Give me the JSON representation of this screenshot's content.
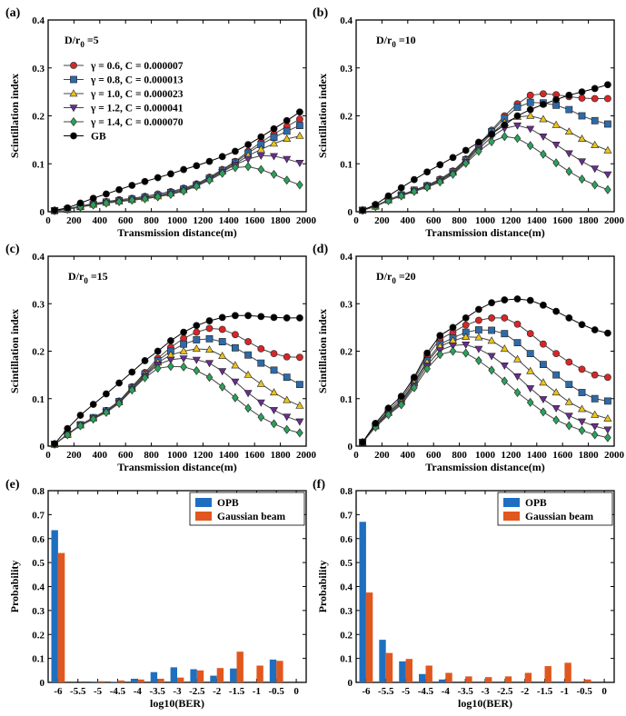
{
  "colors": {
    "gamma_0_6": "#d62728",
    "gamma_0_8": "#2e6aa8",
    "gamma_1_0": "#eac21a",
    "gamma_1_2": "#6a2c91",
    "gamma_1_4": "#2ca05a",
    "gb": "#000000",
    "opb": "#1f6fc0",
    "gaussian": "#e0581e"
  },
  "legend": {
    "scint": [
      {
        "key": "g06",
        "label": "γ = 0.6, C = 0.000007",
        "marker": "circle",
        "color_key": "gamma_0_6"
      },
      {
        "key": "g08",
        "label": "γ = 0.8, C = 0.000013",
        "marker": "square",
        "color_key": "gamma_0_8"
      },
      {
        "key": "g10",
        "label": "γ = 1.0, C = 0.000023",
        "marker": "triangle-up",
        "color_key": "gamma_1_0"
      },
      {
        "key": "g12",
        "label": "γ = 1.2, C = 0.000041",
        "marker": "triangle-down",
        "color_key": "gamma_1_2"
      },
      {
        "key": "g14",
        "label": "γ = 1.4, C = 0.000070",
        "marker": "diamond",
        "color_key": "gamma_1_4"
      },
      {
        "key": "gb",
        "label": "GB",
        "marker": "circle",
        "color_key": "gb"
      }
    ],
    "ber": [
      {
        "key": "opb",
        "label": "OPB",
        "color_key": "opb"
      },
      {
        "key": "gauss",
        "label": "Gaussian beam",
        "color_key": "gaussian"
      }
    ]
  },
  "chart_data": [
    {
      "id": "a",
      "panel_label": "(a)",
      "type": "line",
      "annotation_prefix": "D/r",
      "annotation_sub": "0",
      "annotation_value": " =5",
      "xlabel": "Transmission distance(m)",
      "ylabel": "Scintillation index",
      "xlim": [
        0,
        2000
      ],
      "ylim": [
        0,
        0.4
      ],
      "xticks": [
        0,
        200,
        400,
        600,
        800,
        1000,
        1200,
        1400,
        1600,
        1800,
        2000
      ],
      "yticks": [
        0,
        0.1,
        0.2,
        0.3,
        0.4
      ],
      "ytick_labels": [
        "0",
        "0.1",
        "0.2",
        "0.3",
        "0.4"
      ],
      "x": [
        50,
        150,
        250,
        350,
        450,
        550,
        650,
        750,
        850,
        950,
        1050,
        1150,
        1250,
        1350,
        1450,
        1550,
        1650,
        1750,
        1850,
        1950
      ],
      "series": [
        {
          "key": "g06",
          "values": [
            0.002,
            0.006,
            0.012,
            0.017,
            0.021,
            0.025,
            0.028,
            0.032,
            0.037,
            0.042,
            0.049,
            0.058,
            0.072,
            0.088,
            0.105,
            0.126,
            0.145,
            0.162,
            0.178,
            0.193
          ]
        },
        {
          "key": "g08",
          "values": [
            0.002,
            0.005,
            0.011,
            0.016,
            0.02,
            0.023,
            0.026,
            0.03,
            0.034,
            0.04,
            0.047,
            0.056,
            0.07,
            0.086,
            0.103,
            0.122,
            0.14,
            0.155,
            0.168,
            0.18
          ]
        },
        {
          "key": "g10",
          "values": [
            0.002,
            0.005,
            0.011,
            0.015,
            0.019,
            0.022,
            0.025,
            0.028,
            0.032,
            0.038,
            0.045,
            0.055,
            0.068,
            0.084,
            0.1,
            0.117,
            0.13,
            0.142,
            0.152,
            0.158
          ]
        },
        {
          "key": "g12",
          "values": [
            0.002,
            0.005,
            0.01,
            0.014,
            0.018,
            0.021,
            0.024,
            0.027,
            0.031,
            0.037,
            0.044,
            0.054,
            0.067,
            0.083,
            0.098,
            0.11,
            0.117,
            0.116,
            0.11,
            0.102
          ]
        },
        {
          "key": "g14",
          "values": [
            0.002,
            0.005,
            0.01,
            0.014,
            0.018,
            0.021,
            0.024,
            0.027,
            0.031,
            0.036,
            0.043,
            0.053,
            0.066,
            0.08,
            0.092,
            0.094,
            0.088,
            0.078,
            0.066,
            0.056
          ]
        },
        {
          "key": "gb",
          "values": [
            0.003,
            0.008,
            0.018,
            0.028,
            0.037,
            0.046,
            0.055,
            0.063,
            0.071,
            0.079,
            0.088,
            0.096,
            0.105,
            0.115,
            0.126,
            0.14,
            0.156,
            0.173,
            0.19,
            0.208
          ]
        }
      ]
    },
    {
      "id": "b",
      "panel_label": "(b)",
      "type": "line",
      "annotation_prefix": "D/r",
      "annotation_sub": "0",
      "annotation_value": " =10",
      "xlabel": "Transmission distance(m)",
      "ylabel": "Scintillation index",
      "xlim": [
        0,
        2000
      ],
      "ylim": [
        0,
        0.4
      ],
      "xticks": [
        0,
        200,
        400,
        600,
        800,
        1000,
        1200,
        1400,
        1600,
        1800,
        2000
      ],
      "yticks": [
        0,
        0.1,
        0.2,
        0.3,
        0.4
      ],
      "ytick_labels": [
        "0",
        "0.1",
        "0.2",
        "0.3",
        "0.4"
      ],
      "x": [
        50,
        150,
        250,
        350,
        450,
        550,
        650,
        750,
        850,
        950,
        1050,
        1150,
        1250,
        1350,
        1450,
        1550,
        1650,
        1750,
        1850,
        1950
      ],
      "series": [
        {
          "key": "g06",
          "values": [
            0.003,
            0.012,
            0.025,
            0.035,
            0.045,
            0.055,
            0.068,
            0.085,
            0.11,
            0.14,
            0.17,
            0.2,
            0.225,
            0.243,
            0.246,
            0.244,
            0.24,
            0.237,
            0.236,
            0.236
          ]
        },
        {
          "key": "g08",
          "values": [
            0.003,
            0.012,
            0.025,
            0.035,
            0.045,
            0.054,
            0.066,
            0.083,
            0.108,
            0.138,
            0.167,
            0.195,
            0.218,
            0.228,
            0.227,
            0.222,
            0.213,
            0.2,
            0.19,
            0.183
          ]
        },
        {
          "key": "g10",
          "values": [
            0.003,
            0.011,
            0.024,
            0.034,
            0.044,
            0.053,
            0.065,
            0.082,
            0.106,
            0.135,
            0.163,
            0.186,
            0.198,
            0.2,
            0.193,
            0.181,
            0.167,
            0.152,
            0.139,
            0.128
          ]
        },
        {
          "key": "g12",
          "values": [
            0.003,
            0.011,
            0.024,
            0.034,
            0.043,
            0.052,
            0.064,
            0.08,
            0.104,
            0.131,
            0.156,
            0.174,
            0.18,
            0.173,
            0.157,
            0.14,
            0.122,
            0.105,
            0.09,
            0.078
          ]
        },
        {
          "key": "g14",
          "values": [
            0.003,
            0.011,
            0.023,
            0.033,
            0.042,
            0.051,
            0.062,
            0.078,
            0.101,
            0.126,
            0.146,
            0.157,
            0.153,
            0.138,
            0.12,
            0.102,
            0.084,
            0.068,
            0.056,
            0.046
          ]
        },
        {
          "key": "gb",
          "values": [
            0.003,
            0.015,
            0.033,
            0.05,
            0.067,
            0.083,
            0.098,
            0.113,
            0.128,
            0.145,
            0.162,
            0.181,
            0.2,
            0.213,
            0.224,
            0.234,
            0.243,
            0.25,
            0.257,
            0.265
          ]
        }
      ]
    },
    {
      "id": "c",
      "panel_label": "(c)",
      "type": "line",
      "annotation_prefix": "D/r",
      "annotation_sub": "0",
      "annotation_value": " =15",
      "xlabel": "Transmission distance(m)",
      "ylabel": "Scintillation index",
      "xlim": [
        0,
        2000
      ],
      "ylim": [
        0,
        0.4
      ],
      "xticks": [
        0,
        200,
        400,
        600,
        800,
        1000,
        1200,
        1400,
        1600,
        1800,
        2000
      ],
      "yticks": [
        0,
        0.1,
        0.2,
        0.3,
        0.4
      ],
      "ytick_labels": [
        "0",
        "0.1",
        "0.2",
        "0.3",
        "0.4"
      ],
      "x": [
        50,
        150,
        250,
        350,
        450,
        550,
        650,
        750,
        850,
        950,
        1050,
        1150,
        1250,
        1350,
        1450,
        1550,
        1650,
        1750,
        1850,
        1950
      ],
      "series": [
        {
          "key": "g06",
          "values": [
            0.004,
            0.025,
            0.045,
            0.06,
            0.075,
            0.095,
            0.125,
            0.155,
            0.185,
            0.208,
            0.227,
            0.24,
            0.248,
            0.246,
            0.235,
            0.22,
            0.205,
            0.195,
            0.188,
            0.187
          ]
        },
        {
          "key": "g08",
          "values": [
            0.004,
            0.025,
            0.045,
            0.06,
            0.074,
            0.094,
            0.123,
            0.152,
            0.18,
            0.2,
            0.215,
            0.224,
            0.226,
            0.22,
            0.207,
            0.192,
            0.175,
            0.16,
            0.145,
            0.13
          ]
        },
        {
          "key": "g10",
          "values": [
            0.004,
            0.024,
            0.044,
            0.059,
            0.073,
            0.093,
            0.121,
            0.149,
            0.176,
            0.192,
            0.2,
            0.205,
            0.203,
            0.19,
            0.17,
            0.15,
            0.131,
            0.113,
            0.097,
            0.085
          ]
        },
        {
          "key": "g12",
          "values": [
            0.004,
            0.024,
            0.044,
            0.058,
            0.072,
            0.092,
            0.12,
            0.147,
            0.172,
            0.182,
            0.185,
            0.182,
            0.175,
            0.158,
            0.136,
            0.112,
            0.092,
            0.076,
            0.062,
            0.052
          ]
        },
        {
          "key": "g14",
          "values": [
            0.004,
            0.024,
            0.043,
            0.057,
            0.071,
            0.09,
            0.118,
            0.144,
            0.164,
            0.168,
            0.167,
            0.159,
            0.145,
            0.125,
            0.102,
            0.08,
            0.061,
            0.047,
            0.035,
            0.028
          ]
        },
        {
          "key": "gb",
          "values": [
            0.005,
            0.037,
            0.065,
            0.088,
            0.11,
            0.133,
            0.156,
            0.18,
            0.2,
            0.222,
            0.24,
            0.254,
            0.264,
            0.271,
            0.275,
            0.275,
            0.273,
            0.271,
            0.27,
            0.27
          ]
        }
      ]
    },
    {
      "id": "d",
      "panel_label": "(d)",
      "type": "line",
      "annotation_prefix": "D/r",
      "annotation_sub": "0",
      "annotation_value": " =20",
      "xlabel": "Transmission distance(m)",
      "ylabel": "Scintillation index",
      "xlim": [
        0,
        2000
      ],
      "ylim": [
        0,
        0.4
      ],
      "xticks": [
        0,
        200,
        400,
        600,
        800,
        1000,
        1200,
        1400,
        1600,
        1800,
        2000
      ],
      "yticks": [
        0,
        0.1,
        0.2,
        0.3,
        0.4
      ],
      "ytick_labels": [
        "0",
        "0.1",
        "0.2",
        "0.3",
        "0.4"
      ],
      "x": [
        50,
        150,
        250,
        350,
        450,
        550,
        650,
        750,
        850,
        950,
        1050,
        1150,
        1250,
        1350,
        1450,
        1550,
        1650,
        1750,
        1850,
        1950
      ],
      "series": [
        {
          "key": "g06",
          "values": [
            0.008,
            0.045,
            0.075,
            0.1,
            0.14,
            0.19,
            0.225,
            0.24,
            0.255,
            0.265,
            0.27,
            0.27,
            0.257,
            0.237,
            0.215,
            0.195,
            0.177,
            0.162,
            0.15,
            0.145
          ]
        },
        {
          "key": "g08",
          "values": [
            0.008,
            0.043,
            0.072,
            0.095,
            0.135,
            0.18,
            0.215,
            0.228,
            0.24,
            0.245,
            0.244,
            0.237,
            0.218,
            0.195,
            0.172,
            0.15,
            0.13,
            0.113,
            0.1,
            0.095
          ]
        },
        {
          "key": "g10",
          "values": [
            0.008,
            0.042,
            0.07,
            0.093,
            0.132,
            0.176,
            0.21,
            0.222,
            0.23,
            0.229,
            0.222,
            0.205,
            0.183,
            0.158,
            0.134,
            0.113,
            0.093,
            0.078,
            0.066,
            0.058
          ]
        },
        {
          "key": "g12",
          "values": [
            0.008,
            0.041,
            0.068,
            0.09,
            0.128,
            0.17,
            0.202,
            0.212,
            0.214,
            0.205,
            0.19,
            0.17,
            0.147,
            0.122,
            0.099,
            0.08,
            0.064,
            0.052,
            0.042,
            0.035
          ]
        },
        {
          "key": "g14",
          "values": [
            0.008,
            0.04,
            0.066,
            0.087,
            0.123,
            0.163,
            0.193,
            0.2,
            0.196,
            0.18,
            0.16,
            0.137,
            0.113,
            0.092,
            0.072,
            0.055,
            0.043,
            0.033,
            0.024,
            0.018
          ]
        },
        {
          "key": "gb",
          "values": [
            0.008,
            0.048,
            0.08,
            0.105,
            0.145,
            0.196,
            0.233,
            0.25,
            0.27,
            0.288,
            0.302,
            0.308,
            0.31,
            0.307,
            0.297,
            0.284,
            0.27,
            0.256,
            0.245,
            0.238
          ]
        }
      ]
    },
    {
      "id": "e",
      "panel_label": "(e)",
      "type": "bar",
      "xlabel": "log10(BER)",
      "ylabel": "Probability",
      "ylim": [
        0,
        0.8
      ],
      "yticks": [
        0,
        0.1,
        0.2,
        0.3,
        0.4,
        0.5,
        0.6,
        0.7,
        0.8
      ],
      "ytick_labels": [
        "0",
        "0.1",
        "0.2",
        "0.3",
        "0.4",
        "0.5",
        "0.6",
        "0.7",
        "0.8"
      ],
      "categories": [
        "-6",
        "-5.5",
        "-5",
        "-4.5",
        "-4",
        "-3.5",
        "-3",
        "-2.5",
        "-2",
        "-1.5",
        "-1",
        "-0.5",
        "0"
      ],
      "series": [
        {
          "key": "opb",
          "values": [
            0.635,
            0,
            0.003,
            0.002,
            0.015,
            0.043,
            0.063,
            0.055,
            0.028,
            0.058,
            0,
            0.095,
            0
          ]
        },
        {
          "key": "gauss",
          "values": [
            0.54,
            0,
            0.005,
            0.008,
            0.012,
            0.015,
            0.02,
            0.05,
            0.06,
            0.128,
            0.07,
            0.09,
            0
          ]
        }
      ]
    },
    {
      "id": "f",
      "panel_label": "(f)",
      "type": "bar",
      "xlabel": "log10(BER)",
      "ylabel": "Probability",
      "ylim": [
        0,
        0.8
      ],
      "yticks": [
        0,
        0.1,
        0.2,
        0.3,
        0.4,
        0.5,
        0.6,
        0.7,
        0.8
      ],
      "ytick_labels": [
        "0",
        "0.1",
        "0.2",
        "0.3",
        "0.4",
        "0.5",
        "0.6",
        "0.7",
        "0.8"
      ],
      "categories": [
        "-6",
        "-5.5",
        "-5",
        "-4.5",
        "-4",
        "-3.5",
        "-3",
        "-2.5",
        "-2",
        "-1.5",
        "-1",
        "-0.5",
        "0"
      ],
      "series": [
        {
          "key": "opb",
          "values": [
            0.67,
            0.178,
            0.088,
            0.035,
            0.012,
            0,
            0,
            0,
            0,
            0,
            0.004,
            0,
            0
          ]
        },
        {
          "key": "gauss",
          "values": [
            0.375,
            0.123,
            0.098,
            0.07,
            0.04,
            0.025,
            0.022,
            0.025,
            0.04,
            0.068,
            0.082,
            0.012,
            0
          ]
        }
      ]
    }
  ]
}
